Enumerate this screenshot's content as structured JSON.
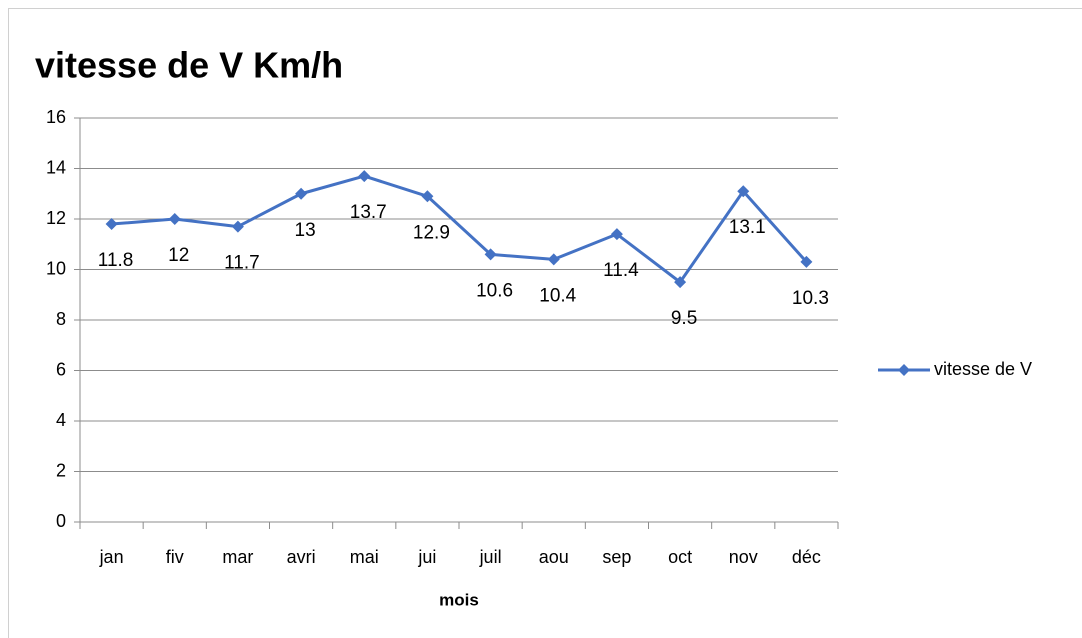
{
  "chart_data": {
    "type": "line",
    "title": "vitesse de V Km/h",
    "x_label": "mois",
    "categories": [
      "jan",
      "fiv",
      "mar",
      "avri",
      "mai",
      "jui",
      "juil",
      "aou",
      "sep",
      "oct",
      "nov",
      "déc"
    ],
    "series": [
      {
        "name": "vitesse de V",
        "color": "#4472c4",
        "values": [
          11.8,
          12,
          11.7,
          13,
          13.7,
          12.9,
          10.6,
          10.4,
          11.4,
          9.5,
          13.1,
          10.3
        ]
      }
    ],
    "ylim": [
      0,
      16
    ],
    "yticks": [
      0,
      2,
      4,
      6,
      8,
      10,
      12,
      14,
      16
    ],
    "grid": true,
    "legend": "right",
    "data_labels": true
  }
}
